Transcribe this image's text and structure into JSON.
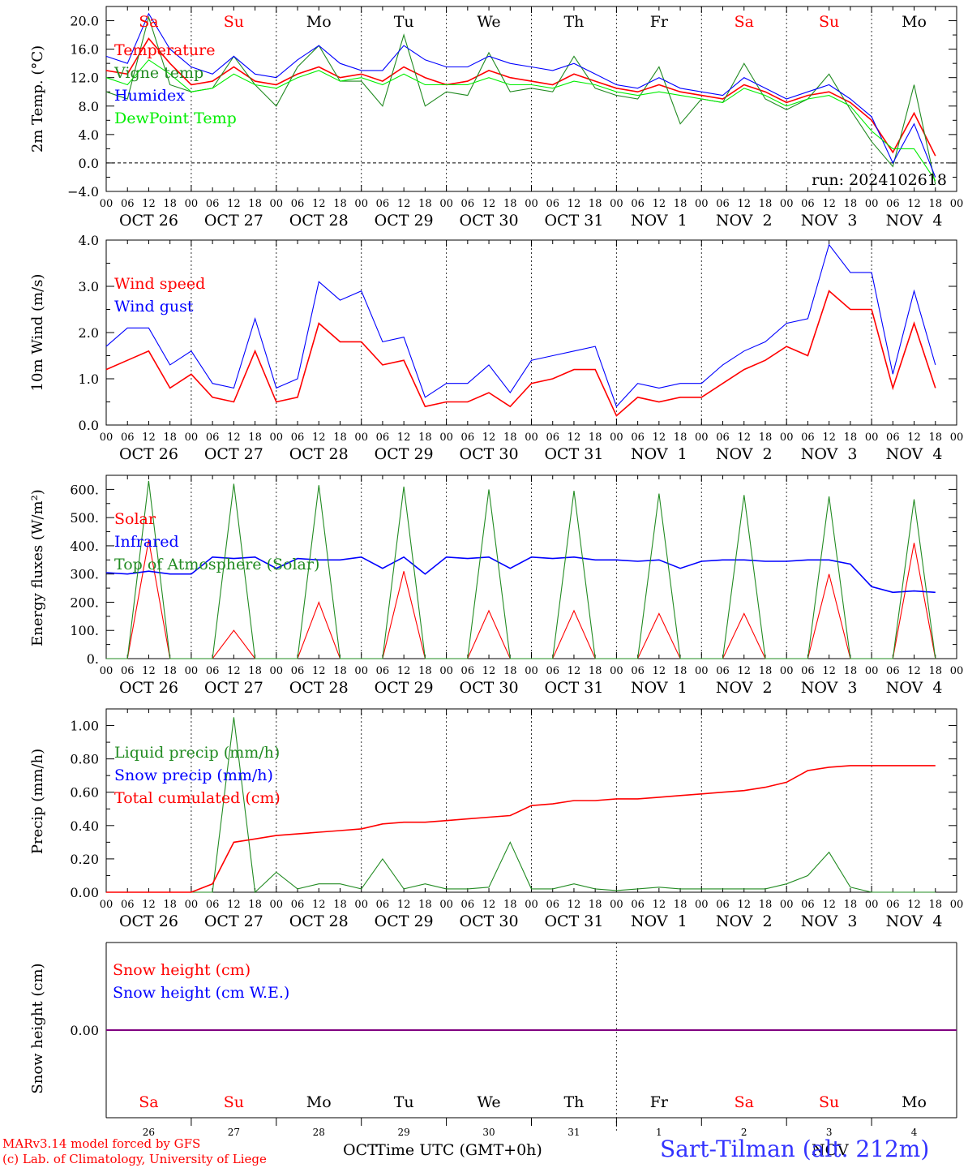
{
  "run_label": "run: 2024102618",
  "days": [
    "Sa",
    "Su",
    "Mo",
    "Tu",
    "We",
    "Th",
    "Fr",
    "Sa",
    "Su",
    "Mo"
  ],
  "weekend_indices": [
    0,
    1,
    7,
    8
  ],
  "date_labels": [
    "OCT 26",
    "OCT 27",
    "OCT 28",
    "OCT 29",
    "OCT 30",
    "OCT 31",
    "NOV  1",
    "NOV  2",
    "NOV  3",
    "NOV  4"
  ],
  "hour_ticks": [
    "00",
    "06",
    "12",
    "18"
  ],
  "bottom_day_numbers": [
    "26",
    "27",
    "28",
    "29",
    "30",
    "31",
    "1",
    "2",
    "3",
    "4"
  ],
  "bottom_month_labels": [
    "OCT",
    "NOV"
  ],
  "xlabel": "Time UTC (GMT+0h)",
  "footer": {
    "line1": "MARv3.14 model forced by GFS",
    "line2": "(c) Lab. of Climatology, University of Liege"
  },
  "station": "Sart-Tilman (alt. 212m)",
  "colors": {
    "red": "#ff0000",
    "green": "#228b22",
    "blue": "#0000ff",
    "light_green": "#00ee00",
    "purple": "#800080",
    "grey": "#555555"
  },
  "chart_data": [
    {
      "type": "line",
      "ylabel": "2m Temp. (°C)",
      "ylim": [
        -4,
        22
      ],
      "yticks": [
        "-4.0",
        "0.0",
        "4.0",
        "8.0",
        "12.0",
        "16.0",
        "20.0"
      ],
      "x_hours": [
        0,
        6,
        12,
        18,
        24,
        30,
        36,
        42,
        48,
        54,
        60,
        66,
        72,
        78,
        84,
        90,
        96,
        102,
        108,
        114,
        120,
        126,
        132,
        138,
        144,
        150,
        156,
        162,
        168,
        174,
        180,
        186,
        192,
        198,
        204,
        210,
        216,
        222,
        228,
        234
      ],
      "series": [
        {
          "name": "Temperature",
          "color": "#ff0000",
          "values": [
            13.0,
            12.5,
            17.5,
            14.0,
            11.0,
            11.5,
            13.5,
            11.5,
            11.0,
            12.5,
            13.5,
            12.0,
            12.5,
            11.5,
            13.5,
            12.0,
            11.0,
            11.5,
            13.0,
            12.0,
            11.5,
            11.0,
            12.5,
            11.5,
            10.5,
            10.0,
            11.0,
            10.0,
            9.5,
            9.0,
            11.0,
            10.0,
            8.5,
            9.5,
            10.0,
            8.5,
            6.0,
            1.5,
            7.0,
            1.0
          ]
        },
        {
          "name": "Vigne temp",
          "color": "#228b22",
          "values": [
            10.0,
            9.0,
            20.5,
            11.0,
            10.0,
            10.5,
            15.0,
            11.0,
            8.0,
            13.5,
            16.5,
            11.5,
            11.5,
            8.0,
            18.0,
            8.0,
            10.0,
            9.5,
            15.5,
            10.0,
            10.5,
            10.0,
            15.0,
            10.5,
            9.5,
            9.0,
            13.5,
            5.5,
            9.0,
            8.5,
            14.0,
            9.0,
            7.5,
            9.0,
            12.5,
            7.5,
            3.0,
            -0.5,
            11.0,
            -3.0
          ]
        },
        {
          "name": "Humidex",
          "color": "#0000ff",
          "values": [
            15.0,
            14.0,
            21.0,
            16.0,
            13.5,
            12.5,
            15.0,
            12.5,
            12.0,
            14.5,
            16.5,
            14.0,
            13.0,
            13.0,
            16.5,
            14.5,
            13.5,
            13.5,
            15.0,
            14.0,
            13.5,
            13.0,
            14.0,
            12.5,
            11.0,
            10.5,
            12.0,
            10.5,
            10.0,
            9.5,
            12.0,
            10.5,
            9.0,
            10.0,
            11.0,
            9.0,
            6.5,
            0.0,
            5.5,
            -2.0
          ]
        },
        {
          "name": "DewPoint Temp",
          "color": "#00ee00",
          "values": [
            12.0,
            11.0,
            14.5,
            12.5,
            10.0,
            10.5,
            12.5,
            11.0,
            10.5,
            12.0,
            13.0,
            11.5,
            12.0,
            11.0,
            12.5,
            11.0,
            11.0,
            11.0,
            12.0,
            11.0,
            11.0,
            10.5,
            11.5,
            11.0,
            10.0,
            9.5,
            10.0,
            9.5,
            9.0,
            8.5,
            10.5,
            9.5,
            8.0,
            9.0,
            9.5,
            8.0,
            4.5,
            2.0,
            2.0,
            -2.5
          ]
        }
      ],
      "legend": "top-left"
    },
    {
      "type": "line",
      "ylabel": "10m Wind (m/s)",
      "ylim": [
        0,
        4
      ],
      "yticks": [
        "0.0",
        "1.0",
        "2.0",
        "3.0",
        "4.0"
      ],
      "x_hours": [
        0,
        6,
        12,
        18,
        24,
        30,
        36,
        42,
        48,
        54,
        60,
        66,
        72,
        78,
        84,
        90,
        96,
        102,
        108,
        114,
        120,
        126,
        132,
        138,
        144,
        150,
        156,
        162,
        168,
        174,
        180,
        186,
        192,
        198,
        204,
        210,
        216,
        222,
        228,
        234
      ],
      "series": [
        {
          "name": "Wind speed",
          "color": "#ff0000",
          "values": [
            1.2,
            1.4,
            1.6,
            0.8,
            1.1,
            0.6,
            0.5,
            1.6,
            0.5,
            0.6,
            2.2,
            1.8,
            1.8,
            1.3,
            1.4,
            0.4,
            0.5,
            0.5,
            0.7,
            0.4,
            0.9,
            1.0,
            1.2,
            1.2,
            0.2,
            0.6,
            0.5,
            0.6,
            0.6,
            0.9,
            1.2,
            1.4,
            1.7,
            1.5,
            2.9,
            2.5,
            2.5,
            0.8,
            2.2,
            0.8
          ]
        },
        {
          "name": "Wind gust",
          "color": "#0000ff",
          "values": [
            1.7,
            2.1,
            2.1,
            1.3,
            1.6,
            0.9,
            0.8,
            2.3,
            0.8,
            1.0,
            3.1,
            2.7,
            2.9,
            1.8,
            1.9,
            0.6,
            0.9,
            0.9,
            1.3,
            0.7,
            1.4,
            1.5,
            1.6,
            1.7,
            0.4,
            0.9,
            0.8,
            0.9,
            0.9,
            1.3,
            1.6,
            1.8,
            2.2,
            2.3,
            3.9,
            3.3,
            3.3,
            1.1,
            2.9,
            1.3
          ]
        }
      ],
      "legend": "top-left"
    },
    {
      "type": "line",
      "ylabel": "Energy fluxes (W/m²)",
      "ylim": [
        0,
        650
      ],
      "yticks": [
        "0.",
        "100.",
        "200.",
        "300.",
        "400.",
        "500.",
        "600."
      ],
      "x_hours": [
        0,
        6,
        12,
        18,
        24,
        30,
        36,
        42,
        48,
        54,
        60,
        66,
        72,
        78,
        84,
        90,
        96,
        102,
        108,
        114,
        120,
        126,
        132,
        138,
        144,
        150,
        156,
        162,
        168,
        174,
        180,
        186,
        192,
        198,
        204,
        210,
        216,
        222,
        228,
        234
      ],
      "series": [
        {
          "name": "Solar",
          "color": "#ff0000",
          "values": [
            0,
            0,
            420,
            0,
            0,
            0,
            100,
            0,
            0,
            0,
            200,
            0,
            0,
            0,
            310,
            0,
            0,
            0,
            170,
            0,
            0,
            0,
            170,
            0,
            0,
            0,
            160,
            0,
            0,
            0,
            160,
            0,
            0,
            0,
            300,
            0,
            0,
            0,
            410,
            0
          ]
        },
        {
          "name": "Infrared",
          "color": "#0000ff",
          "values": [
            305,
            300,
            310,
            300,
            300,
            360,
            355,
            360,
            320,
            355,
            350,
            350,
            360,
            320,
            360,
            300,
            360,
            355,
            360,
            320,
            360,
            355,
            360,
            350,
            350,
            345,
            350,
            320,
            345,
            350,
            350,
            345,
            345,
            350,
            350,
            335,
            255,
            235,
            240,
            235
          ]
        },
        {
          "name": "Top of Atmosphere (Solar)",
          "color": "#228b22",
          "values": [
            0,
            0,
            630,
            0,
            0,
            0,
            620,
            0,
            0,
            0,
            615,
            0,
            0,
            0,
            610,
            0,
            0,
            0,
            600,
            0,
            0,
            0,
            595,
            0,
            0,
            0,
            585,
            0,
            0,
            0,
            580,
            0,
            0,
            0,
            575,
            0,
            0,
            0,
            565,
            0
          ]
        }
      ],
      "legend": "top-left"
    },
    {
      "type": "line",
      "ylabel": "Precip (mm/h)",
      "ylim": [
        0,
        1.1
      ],
      "yticks": [
        "0.00",
        "0.20",
        "0.40",
        "0.60",
        "0.80",
        "1.00"
      ],
      "x_hours": [
        0,
        6,
        12,
        18,
        24,
        30,
        36,
        42,
        48,
        54,
        60,
        66,
        72,
        78,
        84,
        90,
        96,
        102,
        108,
        114,
        120,
        126,
        132,
        138,
        144,
        150,
        156,
        162,
        168,
        174,
        180,
        186,
        192,
        198,
        204,
        210,
        216,
        222,
        228,
        234
      ],
      "series": [
        {
          "name": "Liquid precip (mm/h)",
          "color": "#228b22",
          "values": [
            0,
            0,
            0,
            0,
            0,
            0,
            1.05,
            0,
            0.12,
            0.02,
            0.05,
            0.05,
            0.02,
            0.2,
            0.02,
            0.05,
            0.02,
            0.02,
            0.03,
            0.3,
            0.02,
            0.02,
            0.05,
            0.02,
            0.01,
            0.02,
            0.03,
            0.02,
            0.02,
            0.02,
            0.02,
            0.02,
            0.05,
            0.1,
            0.24,
            0.03,
            0,
            0,
            0,
            0
          ]
        },
        {
          "name": "Snow precip (mm/h)",
          "color": "#0000ff",
          "values": [
            0,
            0,
            0,
            0,
            0,
            0,
            0,
            0,
            0,
            0,
            0,
            0,
            0,
            0,
            0,
            0,
            0,
            0,
            0,
            0,
            0,
            0,
            0,
            0,
            0,
            0,
            0,
            0,
            0,
            0,
            0,
            0,
            0,
            0,
            0,
            0,
            0,
            0,
            0,
            0
          ]
        },
        {
          "name": "Total cumulated (cm)",
          "color": "#ff0000",
          "values": [
            0,
            0,
            0,
            0,
            0,
            0.05,
            0.3,
            0.32,
            0.34,
            0.35,
            0.36,
            0.37,
            0.38,
            0.41,
            0.42,
            0.42,
            0.43,
            0.44,
            0.45,
            0.46,
            0.52,
            0.53,
            0.55,
            0.55,
            0.56,
            0.56,
            0.57,
            0.58,
            0.59,
            0.6,
            0.61,
            0.63,
            0.66,
            0.73,
            0.75,
            0.76,
            0.76,
            0.76,
            0.76,
            0.76
          ]
        }
      ],
      "legend": "top-left"
    },
    {
      "type": "line",
      "ylabel": "Snow height (cm)",
      "yticks": [
        "0.00"
      ],
      "x_hours": [
        0,
        240
      ],
      "series": [
        {
          "name": "Snow height (cm)",
          "color": "#ff0000",
          "values": [
            0,
            0
          ]
        },
        {
          "name": "Snow height (cm W.E.)",
          "color": "#0000ff",
          "values": [
            0,
            0
          ]
        }
      ],
      "legend": "top-left"
    }
  ]
}
